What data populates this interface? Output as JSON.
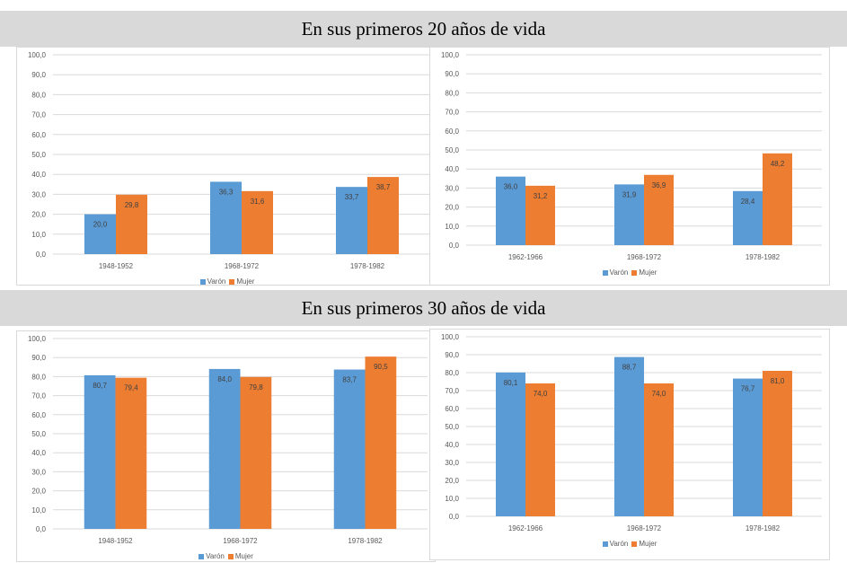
{
  "headers": {
    "top": "En sus primeros 20 años de vida",
    "bottom": "En sus primeros 30 años de vida"
  },
  "colors": {
    "varon": "#5b9bd5",
    "mujer": "#ed7d31",
    "grid": "#d9d9d9",
    "text": "#595959"
  },
  "chart_data": [
    {
      "type": "bar",
      "categories": [
        "1948-1952",
        "1968-1972",
        "1978-1982"
      ],
      "series": [
        {
          "name": "Varón",
          "values": [
            20.0,
            36.3,
            33.7
          ]
        },
        {
          "name": "Mujer",
          "values": [
            29.8,
            31.6,
            38.7
          ]
        }
      ],
      "value_labels": [
        [
          "20,0",
          "36,3",
          "33,7"
        ],
        [
          "29,8",
          "31,6",
          "38,7"
        ]
      ],
      "yticks": [
        "0,0",
        "10,0",
        "20,0",
        "30,0",
        "40,0",
        "50,0",
        "60,0",
        "70,0",
        "80,0",
        "90,0",
        "100,0"
      ],
      "ylim": [
        0,
        100
      ],
      "grid": true,
      "legend": "bottom"
    },
    {
      "type": "bar",
      "categories": [
        "1962-1966",
        "1968-1972",
        "1978-1982"
      ],
      "series": [
        {
          "name": "Varón",
          "values": [
            36.0,
            31.9,
            28.4
          ]
        },
        {
          "name": "Mujer",
          "values": [
            31.2,
            36.9,
            48.2
          ]
        }
      ],
      "value_labels": [
        [
          "36,0",
          "31,9",
          "28,4"
        ],
        [
          "31,2",
          "36,9",
          "48,2"
        ]
      ],
      "yticks": [
        "0,0",
        "10,0",
        "20,0",
        "30,0",
        "40,0",
        "50,0",
        "60,0",
        "70,0",
        "80,0",
        "90,0",
        "100,0"
      ],
      "ylim": [
        0,
        100
      ],
      "grid": true,
      "legend": "bottom"
    },
    {
      "type": "bar",
      "categories": [
        "1948-1952",
        "1968-1972",
        "1978-1982"
      ],
      "series": [
        {
          "name": "Varón",
          "values": [
            80.7,
            84.0,
            83.7
          ]
        },
        {
          "name": "Mujer",
          "values": [
            79.4,
            79.8,
            90.5
          ]
        }
      ],
      "value_labels": [
        [
          "80,7",
          "84,0",
          "83,7"
        ],
        [
          "79,4",
          "79,8",
          "90,5"
        ]
      ],
      "yticks": [
        "0,0",
        "10,0",
        "20,0",
        "30,0",
        "40,0",
        "50,0",
        "60,0",
        "70,0",
        "80,0",
        "90,0",
        "100,0"
      ],
      "ylim": [
        0,
        100
      ],
      "grid": true,
      "legend": "bottom"
    },
    {
      "type": "bar",
      "categories": [
        "1962-1966",
        "1968-1972",
        "1978-1982"
      ],
      "series": [
        {
          "name": "Varón",
          "values": [
            80.1,
            88.7,
            76.7
          ]
        },
        {
          "name": "Mujer",
          "values": [
            74.0,
            74.0,
            81.0
          ]
        }
      ],
      "value_labels": [
        [
          "80,1",
          "88,7",
          "76,7"
        ],
        [
          "74,0",
          "74,0",
          "81,0"
        ]
      ],
      "yticks": [
        "0,0",
        "10,0",
        "20,0",
        "30,0",
        "40,0",
        "50,0",
        "60,0",
        "70,0",
        "80,0",
        "90,0",
        "100,0"
      ],
      "ylim": [
        0,
        100
      ],
      "grid": true,
      "legend": "bottom"
    }
  ]
}
